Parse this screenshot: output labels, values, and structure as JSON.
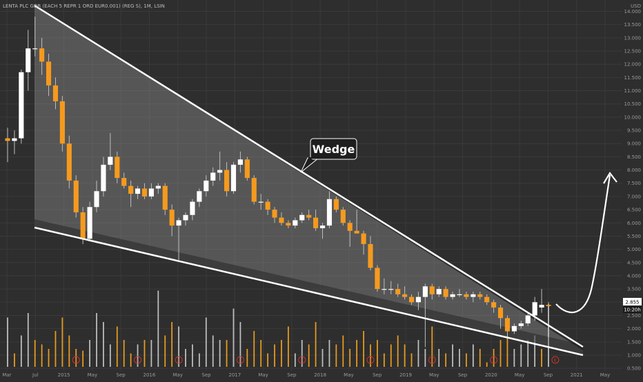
{
  "chart_data": {
    "type": "candlestick",
    "title": "LENTA PLC GDR (EACH 5 REPR 1 ORD EUR0.001) (REG S), 1M, LSIN",
    "currency": "USD",
    "annotation": "Wedge",
    "last_price": "2.855",
    "countdown": "10:20h",
    "earnings_marker": "E",
    "ylim": [
      0.4,
      14.3
    ],
    "grid": true,
    "x_ticks": [
      "Mar",
      "Jul",
      "2015",
      "May",
      "Sep",
      "2016",
      "May",
      "Sep",
      "2017",
      "May",
      "Sep",
      "2018",
      "May",
      "Sep",
      "2019",
      "May",
      "Sep",
      "2020",
      "May",
      "Sep",
      "2021",
      "May"
    ],
    "y_ticks": [
      "14.000",
      "13.500",
      "13.000",
      "12.500",
      "12.000",
      "11.500",
      "11.000",
      "10.500",
      "10.000",
      "9.500",
      "9.000",
      "8.500",
      "8.000",
      "7.500",
      "7.000",
      "6.500",
      "6.000",
      "5.500",
      "5.000",
      "4.500",
      "4.000",
      "3.500",
      "3.000",
      "2.500",
      "2.000",
      "1.500",
      "1.000",
      "0.500"
    ],
    "candles": [
      {
        "o": 9.2,
        "h": 9.6,
        "l": 8.3,
        "c": 9.1
      },
      {
        "o": 9.1,
        "h": 9.5,
        "l": 8.6,
        "c": 9.2
      },
      {
        "o": 9.2,
        "h": 11.8,
        "l": 9.0,
        "c": 11.7
      },
      {
        "o": 11.7,
        "h": 13.3,
        "l": 11.0,
        "c": 12.6
      },
      {
        "o": 12.6,
        "h": 13.8,
        "l": 12.3,
        "c": 12.6
      },
      {
        "o": 12.6,
        "h": 13.0,
        "l": 11.6,
        "c": 12.1
      },
      {
        "o": 12.1,
        "h": 12.4,
        "l": 10.8,
        "c": 11.2
      },
      {
        "o": 11.2,
        "h": 11.5,
        "l": 10.3,
        "c": 10.6
      },
      {
        "o": 10.6,
        "h": 10.8,
        "l": 8.7,
        "c": 9.0
      },
      {
        "o": 9.0,
        "h": 9.3,
        "l": 7.3,
        "c": 7.6
      },
      {
        "o": 7.6,
        "h": 7.8,
        "l": 6.2,
        "c": 6.4
      },
      {
        "o": 6.4,
        "h": 6.6,
        "l": 5.2,
        "c": 5.4
      },
      {
        "o": 5.4,
        "h": 6.8,
        "l": 5.3,
        "c": 6.6
      },
      {
        "o": 6.6,
        "h": 7.6,
        "l": 6.4,
        "c": 7.2
      },
      {
        "o": 7.2,
        "h": 8.5,
        "l": 7.0,
        "c": 8.2
      },
      {
        "o": 8.2,
        "h": 9.4,
        "l": 8.0,
        "c": 8.5
      },
      {
        "o": 8.5,
        "h": 8.7,
        "l": 7.5,
        "c": 7.7
      },
      {
        "o": 7.7,
        "h": 7.9,
        "l": 7.3,
        "c": 7.4
      },
      {
        "o": 7.4,
        "h": 7.6,
        "l": 6.6,
        "c": 7.1
      },
      {
        "o": 7.1,
        "h": 7.4,
        "l": 6.9,
        "c": 7.3
      },
      {
        "o": 7.3,
        "h": 7.5,
        "l": 6.9,
        "c": 7.0
      },
      {
        "o": 7.0,
        "h": 7.5,
        "l": 6.9,
        "c": 7.3
      },
      {
        "o": 7.3,
        "h": 7.5,
        "l": 7.1,
        "c": 7.4
      },
      {
        "o": 7.4,
        "h": 7.5,
        "l": 6.3,
        "c": 6.5
      },
      {
        "o": 6.5,
        "h": 6.7,
        "l": 5.5,
        "c": 5.9
      },
      {
        "o": 5.9,
        "h": 6.2,
        "l": 4.6,
        "c": 6.1
      },
      {
        "o": 6.1,
        "h": 6.4,
        "l": 5.9,
        "c": 6.3
      },
      {
        "o": 6.3,
        "h": 6.9,
        "l": 6.1,
        "c": 6.8
      },
      {
        "o": 6.8,
        "h": 7.3,
        "l": 6.6,
        "c": 7.2
      },
      {
        "o": 7.2,
        "h": 7.8,
        "l": 7.0,
        "c": 7.6
      },
      {
        "o": 7.6,
        "h": 8.1,
        "l": 7.4,
        "c": 7.9
      },
      {
        "o": 7.9,
        "h": 8.7,
        "l": 7.6,
        "c": 8.0
      },
      {
        "o": 8.0,
        "h": 8.3,
        "l": 7.0,
        "c": 7.2
      },
      {
        "o": 7.2,
        "h": 8.3,
        "l": 7.1,
        "c": 8.2
      },
      {
        "o": 8.2,
        "h": 8.7,
        "l": 7.9,
        "c": 8.4
      },
      {
        "o": 8.4,
        "h": 8.5,
        "l": 7.6,
        "c": 7.7
      },
      {
        "o": 7.7,
        "h": 7.8,
        "l": 6.7,
        "c": 6.8
      },
      {
        "o": 6.8,
        "h": 7.1,
        "l": 6.5,
        "c": 6.8
      },
      {
        "o": 6.8,
        "h": 6.9,
        "l": 6.3,
        "c": 6.5
      },
      {
        "o": 6.5,
        "h": 6.6,
        "l": 6.0,
        "c": 6.2
      },
      {
        "o": 6.2,
        "h": 6.4,
        "l": 5.9,
        "c": 6.0
      },
      {
        "o": 6.0,
        "h": 6.1,
        "l": 5.8,
        "c": 5.9
      },
      {
        "o": 5.9,
        "h": 6.2,
        "l": 5.8,
        "c": 6.1
      },
      {
        "o": 6.1,
        "h": 6.4,
        "l": 6.0,
        "c": 6.3
      },
      {
        "o": 6.3,
        "h": 6.5,
        "l": 6.1,
        "c": 6.2
      },
      {
        "o": 6.2,
        "h": 6.5,
        "l": 5.7,
        "c": 5.8
      },
      {
        "o": 5.8,
        "h": 6.0,
        "l": 5.4,
        "c": 5.9
      },
      {
        "o": 5.9,
        "h": 7.2,
        "l": 5.8,
        "c": 6.9
      },
      {
        "o": 6.9,
        "h": 7.0,
        "l": 6.4,
        "c": 6.5
      },
      {
        "o": 6.5,
        "h": 6.6,
        "l": 5.9,
        "c": 6.0
      },
      {
        "o": 6.0,
        "h": 6.1,
        "l": 5.1,
        "c": 5.7
      },
      {
        "o": 5.7,
        "h": 6.5,
        "l": 5.6,
        "c": 5.6
      },
      {
        "o": 5.6,
        "h": 5.7,
        "l": 4.8,
        "c": 5.2
      },
      {
        "o": 5.2,
        "h": 5.5,
        "l": 4.2,
        "c": 4.3
      },
      {
        "o": 4.3,
        "h": 4.4,
        "l": 3.4,
        "c": 3.5
      },
      {
        "o": 3.5,
        "h": 3.9,
        "l": 3.3,
        "c": 3.5
      },
      {
        "o": 3.5,
        "h": 3.8,
        "l": 3.3,
        "c": 3.5
      },
      {
        "o": 3.5,
        "h": 3.7,
        "l": 3.2,
        "c": 3.3
      },
      {
        "o": 3.3,
        "h": 3.6,
        "l": 3.1,
        "c": 3.2
      },
      {
        "o": 3.2,
        "h": 3.3,
        "l": 2.9,
        "c": 3.0
      },
      {
        "o": 3.0,
        "h": 3.4,
        "l": 2.7,
        "c": 3.2
      },
      {
        "o": 3.2,
        "h": 3.7,
        "l": 1.3,
        "c": 3.6
      },
      {
        "o": 3.6,
        "h": 3.7,
        "l": 3.1,
        "c": 3.3
      },
      {
        "o": 3.3,
        "h": 3.6,
        "l": 3.2,
        "c": 3.5
      },
      {
        "o": 3.5,
        "h": 3.6,
        "l": 3.1,
        "c": 3.2
      },
      {
        "o": 3.2,
        "h": 3.4,
        "l": 3.1,
        "c": 3.3
      },
      {
        "o": 3.3,
        "h": 3.5,
        "l": 3.2,
        "c": 3.3
      },
      {
        "o": 3.3,
        "h": 3.4,
        "l": 3.1,
        "c": 3.2
      },
      {
        "o": 3.2,
        "h": 3.4,
        "l": 3.0,
        "c": 3.3
      },
      {
        "o": 3.3,
        "h": 3.4,
        "l": 3.1,
        "c": 3.2
      },
      {
        "o": 3.2,
        "h": 3.3,
        "l": 2.9,
        "c": 3.0
      },
      {
        "o": 3.0,
        "h": 3.1,
        "l": 2.6,
        "c": 2.8
      },
      {
        "o": 2.8,
        "h": 2.9,
        "l": 2.0,
        "c": 2.4
      },
      {
        "o": 2.4,
        "h": 2.5,
        "l": 1.7,
        "c": 1.9
      },
      {
        "o": 1.9,
        "h": 2.2,
        "l": 1.8,
        "c": 2.1
      },
      {
        "o": 2.1,
        "h": 2.3,
        "l": 2.0,
        "c": 2.2
      },
      {
        "o": 2.2,
        "h": 2.6,
        "l": 2.1,
        "c": 2.5
      },
      {
        "o": 2.5,
        "h": 3.2,
        "l": 2.3,
        "c": 3.0
      },
      {
        "o": 2.8,
        "h": 3.5,
        "l": 2.6,
        "c": 2.9
      },
      {
        "o": 2.9,
        "h": 3.0,
        "l": 0.6,
        "c": 2.855
      }
    ],
    "volume_color": [
      "#bdbdbd",
      "#e69a1f",
      "#bdbdbd",
      "#bdbdbd",
      "#e69a1f",
      "#e69a1f",
      "#e69a1f",
      "#e69a1f",
      "#e69a1f",
      "#e69a1f",
      "#e69a1f",
      "#e69a1f",
      "#bdbdbd",
      "#bdbdbd",
      "#bdbdbd",
      "#bdbdbd",
      "#e69a1f",
      "#e69a1f",
      "#e69a1f",
      "#bdbdbd",
      "#e69a1f",
      "#bdbdbd",
      "#bdbdbd",
      "#e69a1f",
      "#e69a1f",
      "#bdbdbd",
      "#bdbdbd",
      "#bdbdbd",
      "#bdbdbd",
      "#bdbdbd",
      "#bdbdbd",
      "#bdbdbd",
      "#e69a1f",
      "#bdbdbd",
      "#bdbdbd",
      "#e69a1f",
      "#e69a1f",
      "#e69a1f",
      "#e69a1f",
      "#e69a1f",
      "#e69a1f",
      "#e69a1f",
      "#bdbdbd",
      "#bdbdbd",
      "#e69a1f",
      "#e69a1f",
      "#bdbdbd",
      "#bdbdbd",
      "#e69a1f",
      "#e69a1f",
      "#e69a1f",
      "#e69a1f",
      "#e69a1f",
      "#e69a1f",
      "#e69a1f",
      "#e69a1f",
      "#e69a1f",
      "#e69a1f",
      "#e69a1f",
      "#e69a1f",
      "#bdbdbd",
      "#bdbdbd",
      "#e69a1f",
      "#bdbdbd",
      "#e69a1f",
      "#bdbdbd",
      "#bdbdbd",
      "#e69a1f",
      "#bdbdbd",
      "#e69a1f",
      "#e69a1f",
      "#e69a1f",
      "#e69a1f",
      "#e69a1f",
      "#bdbdbd",
      "#bdbdbd",
      "#bdbdbd",
      "#bdbdbd",
      "#e69a1f",
      "#bdbdbd"
    ],
    "volume_relative": [
      0.55,
      0.15,
      0.35,
      0.6,
      0.3,
      0.25,
      0.2,
      0.4,
      0.55,
      0.35,
      0.2,
      0.18,
      0.3,
      0.6,
      0.5,
      0.25,
      0.45,
      0.3,
      0.15,
      0.25,
      0.3,
      0.3,
      0.85,
      0.35,
      0.5,
      0.45,
      0.2,
      0.25,
      0.15,
      0.55,
      0.35,
      0.3,
      0.3,
      0.65,
      0.5,
      0.2,
      0.4,
      0.3,
      0.15,
      0.25,
      0.3,
      0.45,
      0.15,
      0.3,
      0.25,
      0.5,
      0.2,
      0.3,
      0.25,
      0.35,
      0.2,
      0.3,
      0.4,
      0.25,
      0.3,
      0.15,
      0.25,
      0.35,
      0.25,
      0.15,
      0.3,
      0.2,
      0.45,
      0.2,
      0.15,
      0.25,
      0.2,
      0.15,
      0.25,
      0.2,
      0.05,
      0.2,
      0.3,
      0.35,
      0.2,
      0.25,
      0.3,
      0.35,
      0.2,
      0.7
    ],
    "earnings_index": [
      10,
      19,
      25,
      34,
      43,
      53,
      62,
      71,
      80
    ]
  },
  "colors": {
    "up": "#ffffff",
    "down": "#f59a1e",
    "wick": "#bfbfbf",
    "background": "#2e2e2e",
    "grid": "#3a3a3a",
    "wedge_fill": "#9e9e9e",
    "earnings_marker": "#c0392b",
    "callout_bg": "#1e1e1e"
  }
}
